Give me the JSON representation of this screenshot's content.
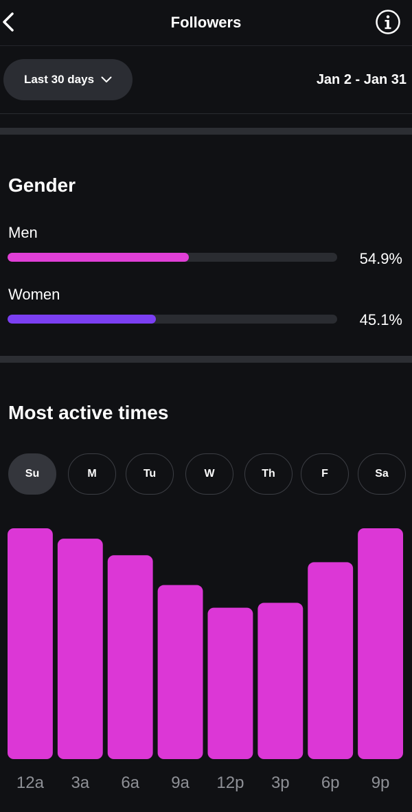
{
  "header": {
    "title": "Followers",
    "back_icon": "chevron-left-icon",
    "info_icon": "info-icon"
  },
  "filter": {
    "range_label": "Last 30 days",
    "dropdown_icon": "chevron-down-icon",
    "date_range": "Jan 2 - Jan 31"
  },
  "gender": {
    "heading": "Gender",
    "items": [
      {
        "label": "Men",
        "value_text": "54.9%",
        "fraction": 0.549,
        "color": "#e03fd6"
      },
      {
        "label": "Women",
        "value_text": "45.1%",
        "fraction": 0.451,
        "color": "#7b3ff2"
      }
    ]
  },
  "active": {
    "heading": "Most active times",
    "days": [
      "Su",
      "M",
      "Tu",
      "W",
      "Th",
      "F",
      "Sa"
    ],
    "selected_day": "Su"
  },
  "chart_data": {
    "type": "bar",
    "categories": [
      "12a",
      "3a",
      "6a",
      "9a",
      "12p",
      "3p",
      "6p",
      "9p"
    ],
    "values": [
      100,
      95.5,
      88.3,
      75.4,
      65.6,
      67.7,
      85.3,
      100
    ],
    "ylim": [
      0,
      100
    ],
    "color": "#dc37d6",
    "grid": false
  }
}
